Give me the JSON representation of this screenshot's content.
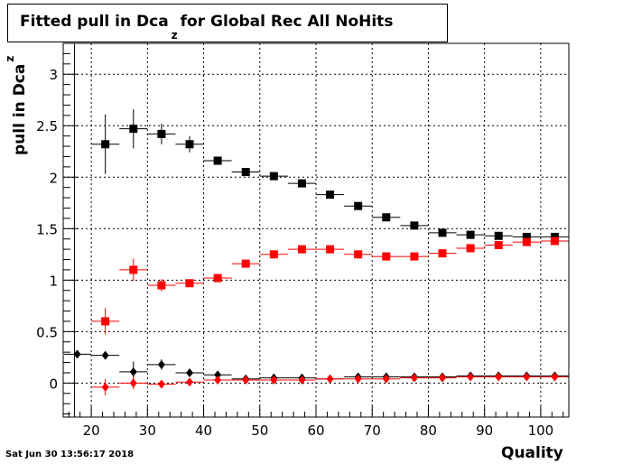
{
  "title": {
    "main": "Fitted pull in Dca",
    "subscript": "z",
    "rest": "for Global Rec All NoHits"
  },
  "timestamp": "Sat Jun 30 13:56:17 2018",
  "colors": {
    "series_black": "#000000",
    "series_red": "#ff0000",
    "grid": "#000000"
  },
  "chart_data": {
    "type": "scatter",
    "title": "Fitted pull in Dca_z for Global Rec All NoHits",
    "xlabel": "Quality",
    "ylabel": "pull in Dca_z",
    "xlim": [
      15,
      105
    ],
    "ylim": [
      -0.33,
      3.3
    ],
    "xticks": [
      20,
      30,
      40,
      50,
      60,
      70,
      80,
      90,
      100
    ],
    "xtick_labels": [
      "20",
      "30",
      "40",
      "50",
      "60",
      "70",
      "80",
      "90",
      "100"
    ],
    "yticks": [
      0,
      0.5,
      1,
      1.5,
      2,
      2.5,
      3
    ],
    "ytick_labels": [
      "0",
      "0.5",
      "1",
      "1.5",
      "2",
      "2.5",
      "3"
    ],
    "grid": true,
    "series": [
      {
        "marker": "square",
        "color": "#000000",
        "x": [
          22.5,
          27.5,
          32.5,
          37.5,
          42.5,
          47.5,
          52.5,
          57.5,
          62.5,
          67.5,
          72.5,
          77.5,
          82.5,
          87.5,
          92.5,
          97.5,
          102.5
        ],
        "y": [
          2.32,
          2.47,
          2.42,
          2.32,
          2.16,
          2.05,
          2.01,
          1.94,
          1.83,
          1.72,
          1.61,
          1.53,
          1.46,
          1.44,
          1.43,
          1.42,
          1.42
        ],
        "yerr": [
          0.29,
          0.19,
          0.1,
          0.08,
          0.04,
          0.03,
          0.02,
          0.02,
          0.02,
          0.02,
          0.02,
          0.02,
          0.02,
          0.02,
          0.02,
          0.02,
          0.02
        ]
      },
      {
        "marker": "square",
        "color": "#ff0000",
        "x": [
          22.5,
          27.5,
          32.5,
          37.5,
          42.5,
          47.5,
          52.5,
          57.5,
          62.5,
          67.5,
          72.5,
          77.5,
          82.5,
          87.5,
          92.5,
          97.5,
          102.5
        ],
        "y": [
          0.6,
          1.1,
          0.95,
          0.97,
          1.02,
          1.16,
          1.25,
          1.3,
          1.3,
          1.25,
          1.23,
          1.23,
          1.26,
          1.31,
          1.34,
          1.37,
          1.38
        ],
        "yerr": [
          0.13,
          0.11,
          0.06,
          0.03,
          0.03,
          0.02,
          0.02,
          0.02,
          0.02,
          0.02,
          0.02,
          0.02,
          0.02,
          0.02,
          0.02,
          0.02,
          0.02
        ]
      },
      {
        "marker": "diamond",
        "color": "#000000",
        "x": [
          17.5,
          22.5,
          27.5,
          32.5,
          37.5,
          42.5,
          47.5,
          52.5,
          57.5,
          62.5,
          67.5,
          72.5,
          77.5,
          82.5,
          87.5,
          92.5,
          97.5,
          102.5
        ],
        "y": [
          0.28,
          0.27,
          0.11,
          0.18,
          0.1,
          0.08,
          0.04,
          0.05,
          0.05,
          0.04,
          0.06,
          0.06,
          0.06,
          0.06,
          0.07,
          0.07,
          0.07,
          0.07
        ],
        "yerr": [
          0.0,
          0.0,
          0.1,
          0.05,
          0.03,
          0.02,
          0.02,
          0.01,
          0.01,
          0.01,
          0.01,
          0.01,
          0.01,
          0.01,
          0.01,
          0.01,
          0.01,
          0.01
        ]
      },
      {
        "marker": "diamond",
        "color": "#ff0000",
        "x": [
          22.5,
          27.5,
          32.5,
          37.5,
          42.5,
          47.5,
          52.5,
          57.5,
          62.5,
          67.5,
          72.5,
          77.5,
          82.5,
          87.5,
          92.5,
          97.5,
          102.5
        ],
        "y": [
          -0.04,
          0.0,
          -0.01,
          0.01,
          0.03,
          0.03,
          0.03,
          0.03,
          0.04,
          0.04,
          0.04,
          0.05,
          0.05,
          0.06,
          0.06,
          0.06,
          0.06
        ],
        "yerr": [
          0.08,
          0.06,
          0.02,
          0.02,
          0.01,
          0.01,
          0.01,
          0.01,
          0.01,
          0.01,
          0.01,
          0.01,
          0.01,
          0.01,
          0.01,
          0.01,
          0.01
        ]
      }
    ]
  }
}
